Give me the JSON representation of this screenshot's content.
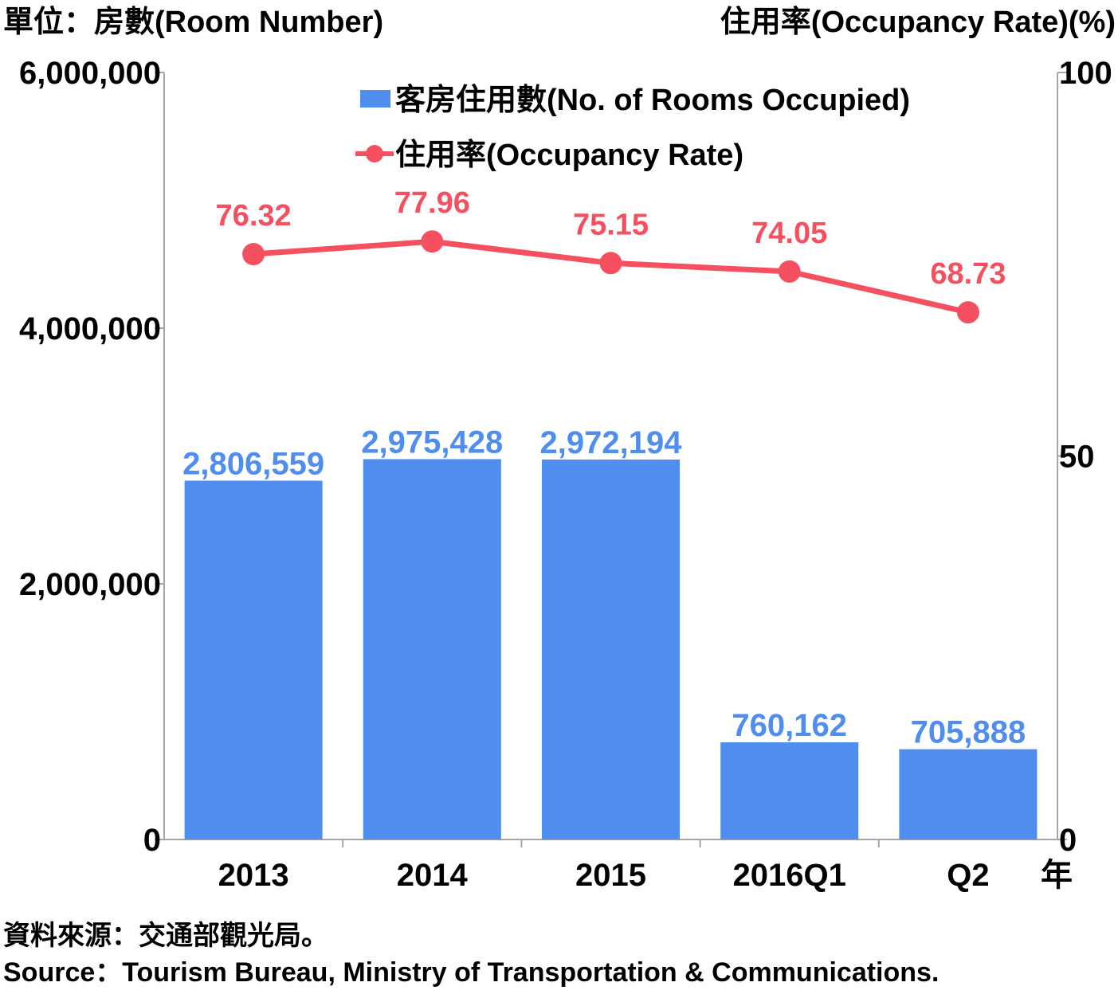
{
  "chart_data": {
    "type": "bar+line",
    "left_axis_title": "單位：房數(Room Number)",
    "right_axis_title": "住用率(Occupancy Rate)(%)",
    "x_unit_label": "年",
    "categories": [
      "2013",
      "2014",
      "2015",
      "2016Q1",
      "Q2"
    ],
    "left_ticks": [
      "0",
      "2,000,000",
      "4,000,000",
      "6,000,000"
    ],
    "left_ylim": [
      0,
      6000000
    ],
    "right_ticks": [
      "0",
      "50",
      "100"
    ],
    "right_ylim": [
      0,
      100
    ],
    "legend_position": "top-center",
    "series": [
      {
        "name": "客房住用數(No. of Rooms Occupied)",
        "type": "bar",
        "axis": "left",
        "color": "#4f8def",
        "values": [
          2806559,
          2975428,
          2972194,
          760162,
          705888
        ],
        "labels": [
          "2,806,559",
          "2,975,428",
          "2,972,194",
          "760,162",
          "705,888"
        ]
      },
      {
        "name": "住用率(Occupancy Rate)",
        "type": "line",
        "axis": "right",
        "color": "#f5505f",
        "values": [
          76.32,
          77.96,
          75.15,
          74.05,
          68.73
        ],
        "labels": [
          "76.32",
          "77.96",
          "75.15",
          "74.05",
          "68.73"
        ]
      }
    ],
    "axis_color": "#a6a6a6"
  },
  "source_zh": "資料來源：交通部觀光局。",
  "source_en": "Source：Tourism Bureau, Ministry of Transportation & Communications."
}
